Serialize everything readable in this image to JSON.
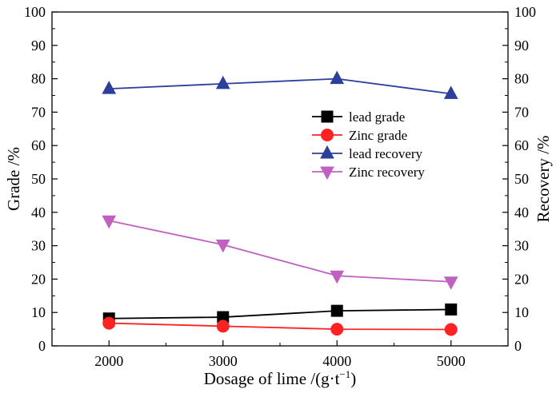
{
  "chart_data": {
    "type": "line",
    "title": "",
    "xlabel": "Dosage of lime /(g·t",
    "xlabel_superscript": "−1",
    "xlabel_tail": ")",
    "ylabel": "Grade /%",
    "y2label": "Recovery /%",
    "x": [
      2000,
      3000,
      4000,
      5000
    ],
    "x_ticks": [
      "2000",
      "3000",
      "4000",
      "5000"
    ],
    "xlim": [
      1500,
      5500
    ],
    "ylim": [
      0,
      100
    ],
    "y_ticks": [
      "0",
      "10",
      "20",
      "30",
      "40",
      "50",
      "60",
      "70",
      "80",
      "90",
      "100"
    ],
    "y2lim": [
      0,
      100
    ],
    "y2_ticks": [
      "0",
      "10",
      "20",
      "30",
      "40",
      "50",
      "60",
      "70",
      "80",
      "90",
      "100"
    ],
    "grid": false,
    "legend_position": "upper-right",
    "series": [
      {
        "name": "lead  grade",
        "axis": "left",
        "marker": "square",
        "color": "#000000",
        "values": [
          8.2,
          8.6,
          10.5,
          10.9
        ]
      },
      {
        "name": "Zinc  grade",
        "axis": "left",
        "marker": "circle",
        "color": "#ff2222",
        "values": [
          6.8,
          5.9,
          5.0,
          4.9
        ]
      },
      {
        "name": "lead  recovery",
        "axis": "right",
        "marker": "triangle-up",
        "color": "#2b3f9b",
        "values": [
          77.0,
          78.5,
          80.0,
          75.5
        ]
      },
      {
        "name": "Zinc   recovery",
        "axis": "right",
        "marker": "triangle-down",
        "color": "#c060c0",
        "values": [
          37.5,
          30.3,
          21.0,
          19.2
        ]
      }
    ]
  }
}
